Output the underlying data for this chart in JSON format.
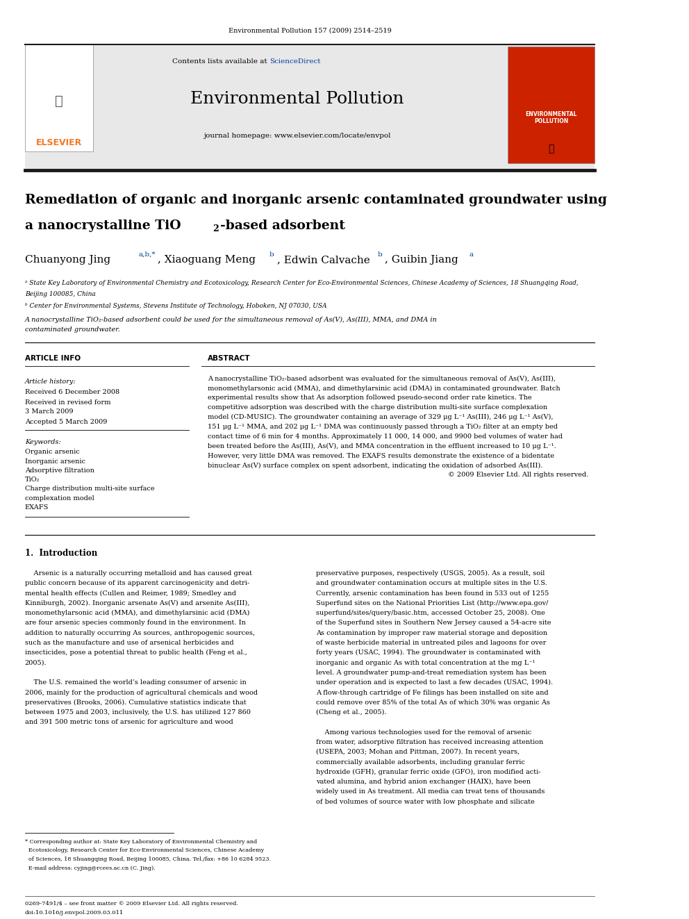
{
  "page_width": 9.92,
  "page_height": 13.23,
  "bg_color": "#ffffff",
  "header_journal_ref": "Environmental Pollution 157 (2009) 2514–2519",
  "journal_name": "Environmental Pollution",
  "contents_text": "Contents lists available at ",
  "sciencedirect_text": "ScienceDirect",
  "homepage_text": "journal homepage: www.elsevier.com/locate/envpol",
  "elsevier_color": "#f47920",
  "sciencedirect_color": "#003d99",
  "header_bg": "#e8e8e8",
  "black_bar_color": "#1a1a1a",
  "title_line1": "Remediation of organic and inorganic arsenic contaminated groundwater using",
  "title_line2": "a nanocrystalline TiO₂-based adsorbent",
  "article_info_header": "ARTICLE INFO",
  "abstract_header": "ABSTRACT",
  "article_history_label": "Article history:",
  "received1": "Received 6 December 2008",
  "received2": "Received in revised form",
  "received3": "3 March 2009",
  "accepted": "Accepted 5 March 2009",
  "keywords_label": "Keywords:",
  "kw1": "Organic arsenic",
  "kw2": "Inorganic arsenic",
  "kw3": "Adsorptive filtration",
  "kw4": "TiO₂",
  "kw5": "Charge distribution multi-site surface",
  "kw6": "complexation model",
  "kw7": "EXAFS",
  "copyright": "© 2009 Elsevier Ltd. All rights reserved.",
  "intro_header": "1.  Introduction",
  "affil_a": "ᵃ State Key Laboratory of Environmental Chemistry and Ecotoxicology, Research Center for Eco-Environmental Sciences, Chinese Academy of Sciences, 18 Shuangqing Road,",
  "affil_a2": "Beijing 100085, China",
  "affil_b": "ᵇ Center for Environmental Systems, Stevens Institute of Technology, Hoboken, NJ 07030, USA",
  "graphical_abstract": "A nanocrystalline TiO₂-based adsorbent could be used for the simultaneous removal of As(V), As(III), MMA, and DMA in",
  "graphical_abstract2": "contaminated groundwater.",
  "bottom_ref": "0269-7491/$ – see front matter © 2009 Elsevier Ltd. All rights reserved.",
  "bottom_doi": "doi:10.1016/j.envpol.2009.03.011"
}
